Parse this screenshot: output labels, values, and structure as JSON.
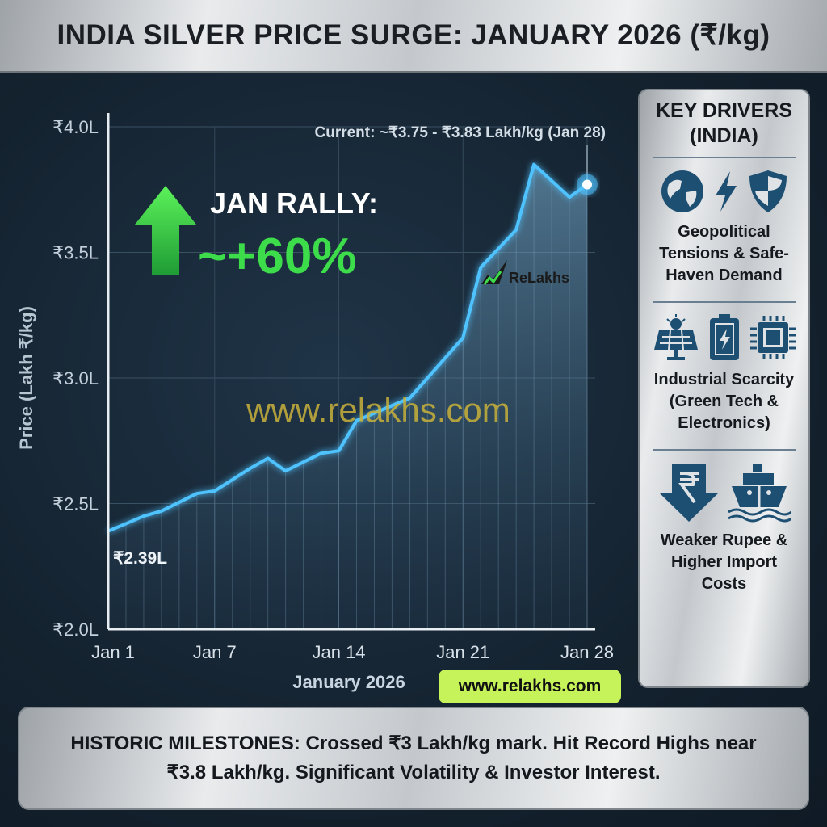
{
  "title": "INDIA SILVER PRICE SURGE: JANUARY 2026 (₹/kg)",
  "chart_data": {
    "type": "line",
    "title": "INDIA SILVER PRICE SURGE: JANUARY 2026 (₹/kg)",
    "xlabel": "January 2026",
    "ylabel": "Price (Lakh ₹/kg)",
    "xlim": [
      1,
      28
    ],
    "ylim": [
      2.0,
      4.0
    ],
    "yticks": [
      2.0,
      2.5,
      3.0,
      3.5,
      4.0
    ],
    "ytick_labels": [
      "₹2.0L",
      "₹2.5L",
      "₹3.0L",
      "₹3.5L",
      "₹4.0L"
    ],
    "xticks": [
      1,
      7,
      14,
      21,
      28
    ],
    "xtick_labels": [
      "Jan 1",
      "Jan 7",
      "Jan 14",
      "Jan 21",
      "Jan 28"
    ],
    "grid": true,
    "series": [
      {
        "name": "Silver price",
        "color": "#4fc3ff",
        "x": [
          1,
          3,
          4,
          6,
          7,
          9,
          10,
          11,
          13,
          14,
          15,
          18,
          21,
          22,
          24,
          25,
          27,
          28
        ],
        "values": [
          2.39,
          2.45,
          2.47,
          2.54,
          2.55,
          2.64,
          2.68,
          2.63,
          2.7,
          2.71,
          2.83,
          2.92,
          3.16,
          3.44,
          3.59,
          3.85,
          3.72,
          3.77
        ]
      }
    ],
    "annotations": {
      "start_label": "₹2.39L",
      "current": "Current: ~₹3.75 - ₹3.83 Lakh/kg (Jan 28)",
      "rally_title": "JAN RALLY:",
      "rally_value": "~+60%",
      "watermark": "www.relakhs.com",
      "logo": "ReLakhs"
    }
  },
  "colors": {
    "accent_line": "#4fc3ff",
    "rally_green": "#3ddc4a",
    "badge": "#c6f25a",
    "icon_blue": "#1d4f73"
  },
  "side_panel": {
    "heading": "KEY DRIVERS (INDIA)",
    "drivers": [
      {
        "label": "Geopolitical Tensions & Safe-Haven Demand",
        "icons": [
          "globe-icon",
          "lightning-icon",
          "shield-icon"
        ]
      },
      {
        "label": "Industrial Scarcity (Green Tech & Electronics)",
        "icons": [
          "solar-panel-icon",
          "battery-icon",
          "chip-icon"
        ]
      },
      {
        "label": "Weaker Rupee & Higher Import Costs",
        "icons": [
          "rupee-down-icon",
          "ship-icon"
        ]
      }
    ]
  },
  "badge": "www.relakhs.com",
  "milestones": "HISTORIC MILESTONES: Crossed ₹3 Lakh/kg mark. Hit Record Highs near ₹3.8 Lakh/kg. Significant Volatility & Investor Interest."
}
